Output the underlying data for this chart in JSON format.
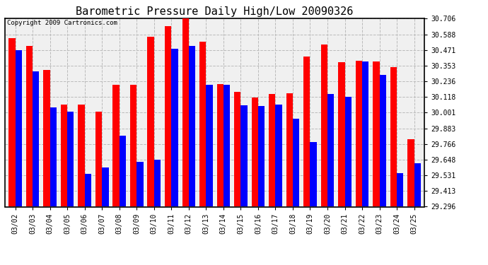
{
  "title": "Barometric Pressure Daily High/Low 20090326",
  "copyright": "Copyright 2009 Cartronics.com",
  "dates": [
    "03/02",
    "03/03",
    "03/04",
    "03/05",
    "03/06",
    "03/07",
    "03/08",
    "03/09",
    "03/10",
    "03/11",
    "03/12",
    "03/13",
    "03/14",
    "03/15",
    "03/16",
    "03/17",
    "03/18",
    "03/19",
    "03/20",
    "03/21",
    "03/22",
    "03/23",
    "03/24",
    "03/25"
  ],
  "highs": [
    30.56,
    30.5,
    30.32,
    30.06,
    30.06,
    30.01,
    30.21,
    30.21,
    30.57,
    30.65,
    30.71,
    30.53,
    30.215,
    30.155,
    30.115,
    30.14,
    30.145,
    30.42,
    30.51,
    30.38,
    30.39,
    30.385,
    30.34,
    29.8
  ],
  "lows": [
    30.47,
    30.31,
    30.04,
    30.01,
    29.54,
    29.59,
    29.83,
    29.63,
    29.65,
    30.48,
    30.5,
    30.21,
    30.21,
    30.055,
    30.05,
    30.06,
    29.955,
    29.78,
    30.14,
    30.12,
    30.385,
    30.285,
    29.55,
    29.62
  ],
  "ymin": 29.296,
  "ymax": 30.706,
  "yticks": [
    30.706,
    30.588,
    30.471,
    30.353,
    30.236,
    30.118,
    30.001,
    29.883,
    29.766,
    29.648,
    29.531,
    29.413,
    29.296
  ],
  "high_color": "#ff0000",
  "low_color": "#0000ff",
  "bg_color": "#ffffff",
  "plot_bg_color": "#f0f0f0",
  "grid_color": "#bbbbbb",
  "title_fontsize": 11,
  "tick_fontsize": 7,
  "bar_width": 0.38
}
